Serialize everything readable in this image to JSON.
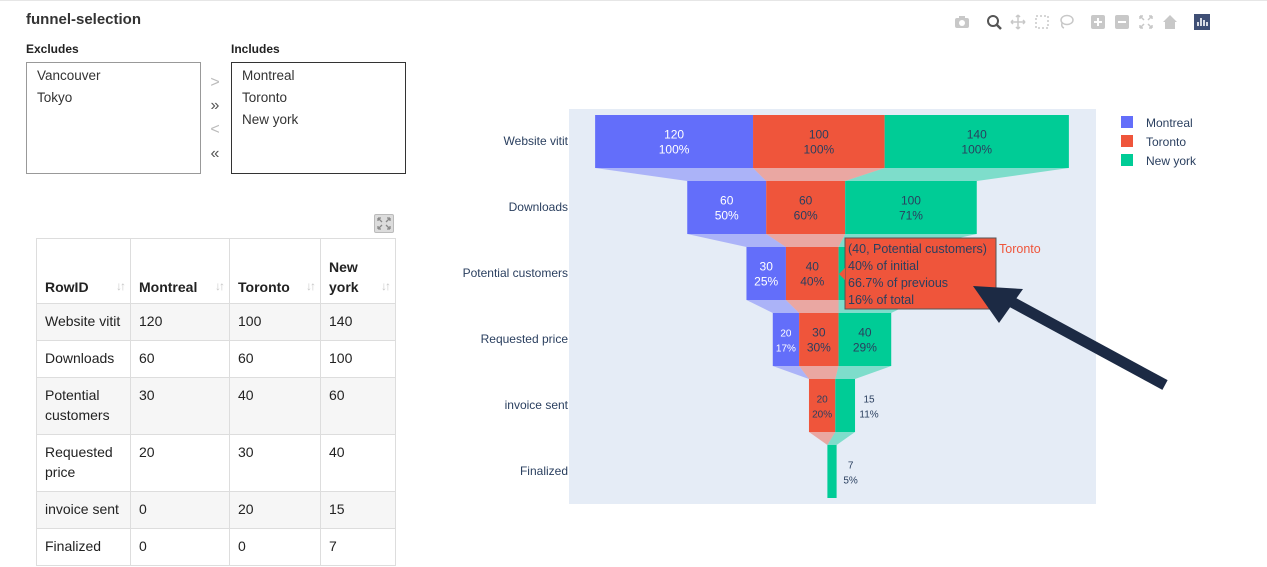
{
  "page_title": "funnel-selection",
  "excludes": {
    "label": "Excludes",
    "items": [
      "Vancouver",
      "Tokyo"
    ]
  },
  "includes": {
    "label": "Includes",
    "items": [
      "Montreal",
      "Toronto",
      "New york"
    ]
  },
  "move_buttons": [
    ">",
    "»",
    "<",
    "«"
  ],
  "table": {
    "headers": [
      "RowID",
      "Montreal",
      "Toronto",
      "New york"
    ],
    "rows": [
      [
        "Website vitit",
        "120",
        "100",
        "140"
      ],
      [
        "Downloads",
        "60",
        "60",
        "100"
      ],
      [
        "Potential customers",
        "30",
        "40",
        "60"
      ],
      [
        "Requested price",
        "20",
        "30",
        "40"
      ],
      [
        "invoice sent",
        "0",
        "20",
        "15"
      ],
      [
        "Finalized",
        "0",
        "0",
        "7"
      ]
    ]
  },
  "modebar_icons": [
    "camera-icon",
    "zoom-icon",
    "pan-icon",
    "box-select-icon",
    "lasso-select-icon",
    "zoom-in-icon",
    "zoom-out-icon",
    "autoscale-icon",
    "reset-axes-icon",
    "plotly-logo-icon"
  ],
  "colors": {
    "montreal": "#636efa",
    "toronto": "#ef553b",
    "new_york": "#00cc96",
    "plot_bg": "#e5ecf6",
    "axis_text": "#2a3f5f",
    "arrow": "#1c2a44"
  },
  "chart_data": {
    "type": "funnel",
    "stages": [
      "Website vitit",
      "Downloads",
      "Potential customers",
      "Requested price",
      "invoice sent",
      "Finalized"
    ],
    "series": [
      {
        "name": "Montreal",
        "values": [
          120,
          60,
          30,
          20,
          0,
          0
        ],
        "labels": [
          [
            "120",
            "100%"
          ],
          [
            "60",
            "50%"
          ],
          [
            "30",
            "25%"
          ],
          [
            "20",
            "17%"
          ],
          null,
          null
        ]
      },
      {
        "name": "Toronto",
        "values": [
          100,
          60,
          40,
          30,
          20,
          0
        ],
        "labels": [
          [
            "100",
            "100%"
          ],
          [
            "60",
            "60%"
          ],
          [
            "40",
            "40%"
          ],
          [
            "30",
            "30%"
          ],
          [
            "20",
            "20%"
          ],
          null
        ]
      },
      {
        "name": "New york",
        "values": [
          140,
          100,
          60,
          40,
          15,
          7
        ],
        "labels": [
          [
            "140",
            "100%"
          ],
          [
            "100",
            "71%"
          ],
          null,
          [
            "40",
            "29%"
          ],
          [
            "15",
            "11%"
          ],
          [
            "7",
            "5%"
          ]
        ]
      }
    ],
    "legend_position": "top-right",
    "hover": {
      "series": "Toronto",
      "stage": "Potential customers",
      "lines": [
        "(40, Potential customers)",
        "40% of initial",
        "66.7% of previous",
        "16% of total"
      ],
      "name": "Toronto"
    }
  }
}
